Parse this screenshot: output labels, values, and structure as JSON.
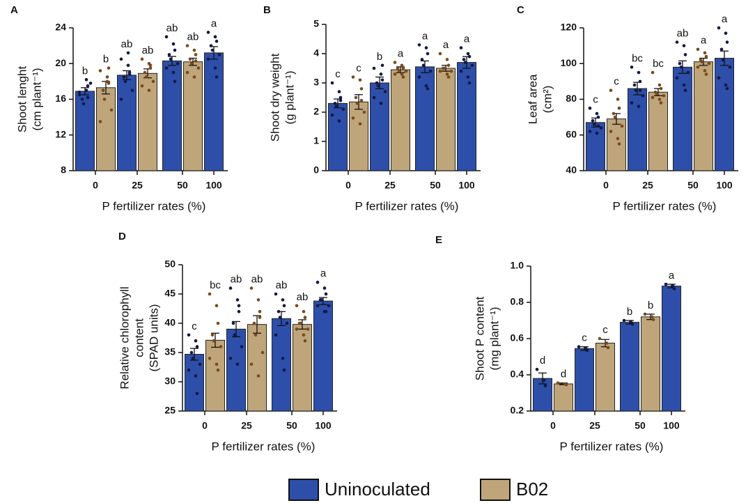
{
  "chart_data": [
    {
      "type": "bar",
      "label": "A",
      "ylabel": [
        "Shoot lenght",
        "(cm plant⁻¹)"
      ],
      "xlabel": "P fertilizer rates (%)",
      "categories": [
        "0",
        "25",
        "50",
        "100"
      ],
      "ylim": [
        8,
        24
      ],
      "yticks": [
        8,
        12,
        16,
        20,
        24
      ],
      "series": [
        {
          "name": "Uninoculated",
          "color": "#2d4faa",
          "point_color": "#141845",
          "values": [
            16.9,
            18.7,
            20.3,
            21.2
          ],
          "errors": [
            0.4,
            0.5,
            0.5,
            0.7
          ],
          "letters": [
            "b",
            "ab",
            "ab",
            "a"
          ],
          "points": [
            [
              16.5,
              17,
              17.5,
              16,
              15.5,
              17.8,
              16.8,
              18.2,
              16.2
            ],
            [
              20.5,
              19.8,
              19,
              18.5,
              18,
              17,
              16,
              21.2,
              18.8
            ],
            [
              23,
              22.2,
              21.5,
              21,
              20.5,
              20,
              19.5,
              19,
              18
            ],
            [
              23.5,
              23,
              22.5,
              22,
              21.5,
              21,
              20.5,
              19.5,
              18.5
            ]
          ]
        },
        {
          "name": "B02",
          "color": "#bfa57a",
          "point_color": "#7a4a1a",
          "values": [
            17.3,
            18.9,
            20.2,
            null
          ],
          "errors": [
            0.7,
            0.5,
            0.4,
            null
          ],
          "letters": [
            "b",
            "ab",
            "ab",
            null
          ],
          "points": [
            [
              19.2,
              18,
              17.8,
              17,
              16,
              14.8,
              13.5,
              18.5,
              19.5
            ],
            [
              20.5,
              20,
              19.5,
              19,
              18.5,
              18,
              17.5,
              17,
              19.8
            ],
            [
              22,
              21.5,
              21,
              20.5,
              20,
              19.5,
              19,
              18.5,
              20.3
            ],
            null
          ]
        }
      ]
    },
    {
      "type": "bar",
      "label": "B",
      "ylabel": [
        "Shoot dry weight",
        "(g plant⁻¹)"
      ],
      "xlabel": "P fertilizer rates (%)",
      "categories": [
        "0",
        "25",
        "50",
        "100"
      ],
      "ylim": [
        0,
        5
      ],
      "yticks": [
        0,
        1,
        2,
        3,
        4,
        5
      ],
      "series": [
        {
          "name": "Uninoculated",
          "color": "#2d4faa",
          "point_color": "#141845",
          "values": [
            2.3,
            3.0,
            3.55,
            3.7
          ],
          "errors": [
            0.15,
            0.2,
            0.2,
            0.2
          ],
          "letters": [
            "c",
            "b",
            "a",
            "a"
          ],
          "points": [
            [
              3,
              2.7,
              2.5,
              2.3,
              2.2,
              2.1,
              1.9,
              1.7,
              2.4
            ],
            [
              3.5,
              3.3,
              3.1,
              3,
              2.9,
              2.7,
              2.5,
              2.3,
              3.6
            ],
            [
              4.3,
              4.2,
              4,
              3.8,
              3.6,
              3.4,
              3.2,
              2.9,
              2.8
            ],
            [
              4.2,
              4,
              3.9,
              3.8,
              3.7,
              3.6,
              3.4,
              3.2,
              3.0
            ]
          ]
        },
        {
          "name": "B02",
          "color": "#bfa57a",
          "point_color": "#7a4a1a",
          "values": [
            2.35,
            3.45,
            3.5,
            null
          ],
          "errors": [
            0.25,
            0.1,
            0.1,
            null
          ],
          "letters": [
            "c",
            "a",
            "a",
            null
          ],
          "points": [
            [
              3.2,
              3.1,
              2.8,
              2.5,
              2.3,
              2,
              1.8,
              1.6,
              2.4
            ],
            [
              3.7,
              3.6,
              3.5,
              3.5,
              3.4,
              3.4,
              3.3,
              3.3,
              3.2
            ],
            [
              4,
              3.8,
              3.6,
              3.5,
              3.5,
              3.4,
              3.4,
              3.3,
              3.2
            ],
            null
          ]
        }
      ]
    },
    {
      "type": "bar",
      "label": "C",
      "ylabel": [
        "Leaf area",
        "(cm²)"
      ],
      "xlabel": "P fertilizer rates (%)",
      "categories": [
        "0",
        "25",
        "50",
        "100"
      ],
      "ylim": [
        40,
        120
      ],
      "yticks": [
        40,
        60,
        80,
        100,
        120
      ],
      "series": [
        {
          "name": "Uninoculated",
          "color": "#2d4faa",
          "point_color": "#141845",
          "values": [
            67,
            86,
            98,
            103
          ],
          "errors": [
            2.5,
            3.5,
            3.5,
            4
          ],
          "letters": [
            "c",
            "bc",
            "ab",
            "a"
          ],
          "points": [
            [
              75,
              72,
              70,
              68,
              66,
              64,
              62,
              61,
              65
            ],
            [
              98,
              95,
              90,
              88,
              85,
              82,
              78,
              76,
              85
            ],
            [
              112,
              110,
              105,
              100,
              98,
              95,
              92,
              88,
              85
            ],
            [
              120,
              117,
              112,
              108,
              102,
              98,
              92,
              88,
              86
            ]
          ]
        },
        {
          "name": "B02",
          "color": "#bfa57a",
          "point_color": "#7a4a1a",
          "values": [
            69,
            84,
            101,
            null
          ],
          "errors": [
            3,
            2,
            2,
            null
          ],
          "letters": [
            "c",
            "bc",
            "a",
            null
          ],
          "points": [
            [
              85,
              80,
              75,
              72,
              70,
              65,
              62,
              58,
              55
            ],
            [
              95,
              88,
              86,
              84,
              83,
              82,
              81,
              80,
              78
            ],
            [
              108,
              106,
              104,
              102,
              101,
              100,
              98,
              96,
              94
            ],
            null
          ]
        }
      ]
    },
    {
      "type": "bar",
      "label": "D",
      "ylabel": [
        "Relative chlorophyll",
        "content",
        "(SPAD units)"
      ],
      "xlabel": "P fertilizer rates (%)",
      "categories": [
        "0",
        "25",
        "50",
        "100"
      ],
      "ylim": [
        25,
        50
      ],
      "yticks": [
        25,
        30,
        35,
        40,
        45,
        50
      ],
      "series": [
        {
          "name": "Uninoculated",
          "color": "#2d4faa",
          "point_color": "#141845",
          "values": [
            34.7,
            39,
            40.8,
            43.8
          ],
          "errors": [
            1,
            1.3,
            1.2,
            0.6
          ],
          "letters": [
            "c",
            "ab",
            "ab",
            "a"
          ],
          "points": [
            [
              38,
              37,
              36,
              35,
              34,
              33,
              32,
              31,
              28
            ],
            [
              46,
              44,
              42,
              40,
              38,
              36,
              34,
              33,
              43
            ],
            [
              45,
              44,
              43,
              42,
              41,
              40,
              38,
              34,
              32
            ],
            [
              47,
              46,
              45,
              44,
              44,
              43,
              43,
              42,
              42
            ]
          ]
        },
        {
          "name": "B02",
          "color": "#bfa57a",
          "point_color": "#7a4a1a",
          "values": [
            37.1,
            39.8,
            39.8,
            null
          ],
          "errors": [
            1.2,
            1.5,
            0.8,
            null
          ],
          "letters": [
            "bc",
            "ab",
            "ab",
            null
          ],
          "points": [
            [
              45,
              43,
              40,
              38,
              37,
              36,
              34,
              33,
              32
            ],
            [
              46,
              44,
              42,
              40,
              38,
              35,
              33,
              31,
              41
            ],
            [
              43,
              42,
              41,
              40,
              40,
              39,
              39,
              38,
              37
            ],
            null
          ]
        }
      ]
    },
    {
      "type": "bar",
      "label": "E",
      "ylabel": [
        "Shoot P content",
        "(mg plant⁻¹)"
      ],
      "xlabel": "P fertilizer rates (%)",
      "categories": [
        "0",
        "25",
        "50",
        "100"
      ],
      "ylim": [
        0.2,
        1
      ],
      "yticks": [
        0.2,
        0.4,
        0.6,
        0.8,
        {
          "value": 1,
          "label": "1.0"
        }
      ],
      "series": [
        {
          "name": "Uninoculated",
          "color": "#2d4faa",
          "point_color": "#141845",
          "values": [
            0.38,
            0.545,
            0.69,
            0.89
          ],
          "errors": [
            0.03,
            0.01,
            0.01,
            0.01
          ],
          "letters": [
            "d",
            "c",
            "b",
            "a"
          ],
          "points": [
            [
              0.43,
              0.37,
              0.34
            ],
            [
              0.555,
              0.545,
              0.535
            ],
            [
              0.7,
              0.69,
              0.68
            ],
            [
              0.9,
              0.89,
              0.875
            ]
          ]
        },
        {
          "name": "B02",
          "color": "#bfa57a",
          "point_color": "#7a4a1a",
          "values": [
            0.35,
            0.575,
            0.72,
            null
          ],
          "errors": [
            0.005,
            0.02,
            0.015,
            null
          ],
          "letters": [
            "d",
            "c",
            "b",
            null
          ],
          "points": [
            [
              0.355,
              0.35,
              0.345
            ],
            [
              0.6,
              0.575,
              0.55
            ],
            [
              0.735,
              0.72,
              0.705
            ],
            null
          ]
        }
      ]
    }
  ]
}
